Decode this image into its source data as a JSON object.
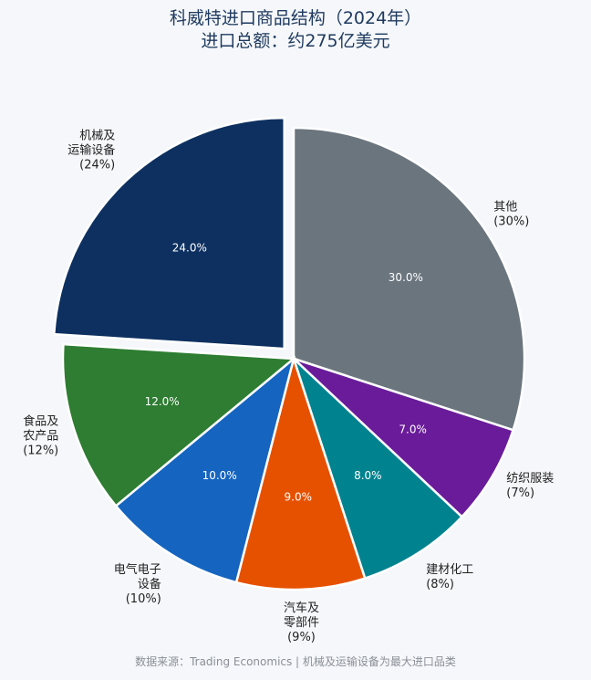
{
  "chart_data": {
    "type": "pie",
    "title_line1": "科威特进口商品结构（2024年）",
    "title_line2": "进口总额：约275亿美元",
    "source": "数据来源：Trading Economics | 机械及运输设备为最大进口品类",
    "slices": [
      {
        "name": "其他",
        "value": 30.0,
        "pct_label": "30.0%",
        "label_lines": [
          "其他",
          "(30%)"
        ],
        "color": "#6b757e"
      },
      {
        "name": "纺织服装",
        "value": 7.0,
        "pct_label": "7.0%",
        "label_lines": [
          "纺织服装",
          "(7%)"
        ],
        "color": "#6a1b9a"
      },
      {
        "name": "建材化工",
        "value": 8.0,
        "pct_label": "8.0%",
        "label_lines": [
          "建材化工",
          "(8%)"
        ],
        "color": "#00838f"
      },
      {
        "name": "汽车及零部件",
        "value": 9.0,
        "pct_label": "9.0%",
        "label_lines": [
          "汽车及",
          "零部件",
          "(9%)"
        ],
        "color": "#e65100"
      },
      {
        "name": "电气电子设备",
        "value": 10.0,
        "pct_label": "10.0%",
        "label_lines": [
          "电气电子",
          "设备",
          "(10%)"
        ],
        "color": "#1565c0"
      },
      {
        "name": "食品及农产品",
        "value": 12.0,
        "pct_label": "12.0%",
        "label_lines": [
          "食品及",
          "农产品",
          "(12%)"
        ],
        "color": "#2e7d32"
      },
      {
        "name": "机械及运输设备",
        "value": 24.0,
        "pct_label": "24.0%",
        "label_lines": [
          "机械及",
          "运输设备",
          "(24%)"
        ],
        "color": "#0d3060",
        "explode": true
      }
    ]
  }
}
